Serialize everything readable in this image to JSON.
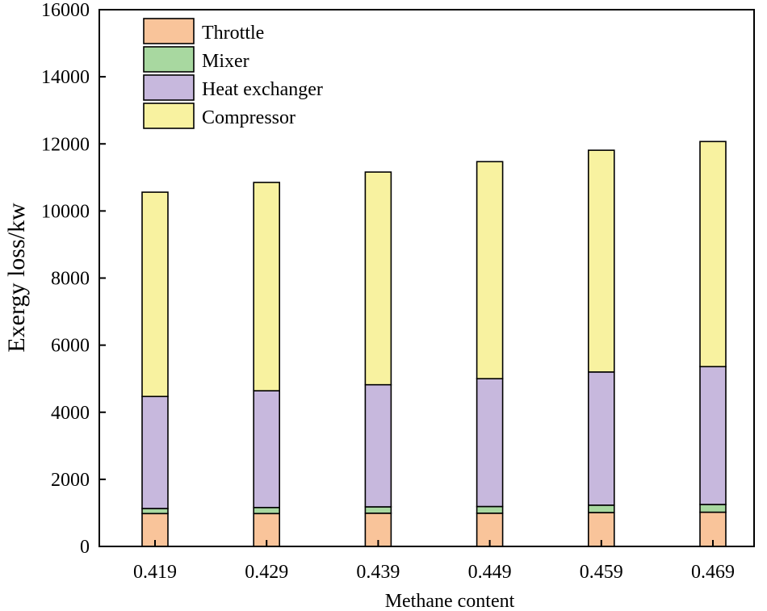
{
  "chart_data": {
    "type": "bar",
    "stacked": true,
    "title": "",
    "xlabel": "Methane content",
    "ylabel": "Exergy loss/kw",
    "ylim": [
      0,
      16000
    ],
    "yticks": [
      0,
      2000,
      4000,
      6000,
      8000,
      10000,
      12000,
      14000,
      16000
    ],
    "categories": [
      "0.419",
      "0.429",
      "0.439",
      "0.449",
      "0.459",
      "0.469"
    ],
    "legend_position": "top-left",
    "series": [
      {
        "name": "Throttle",
        "color": "#f9c49a",
        "values": [
          980,
          980,
          990,
          990,
          1010,
          1020
        ]
      },
      {
        "name": "Mixer",
        "color": "#a8d8a0",
        "values": [
          150,
          180,
          190,
          200,
          220,
          230
        ]
      },
      {
        "name": "Heat exchanger",
        "color": "#c7b8dd",
        "values": [
          3340,
          3480,
          3640,
          3810,
          3970,
          4110
        ]
      },
      {
        "name": "Compressor",
        "color": "#f8f2a0",
        "values": [
          6090,
          6210,
          6340,
          6470,
          6610,
          6710
        ]
      }
    ]
  }
}
